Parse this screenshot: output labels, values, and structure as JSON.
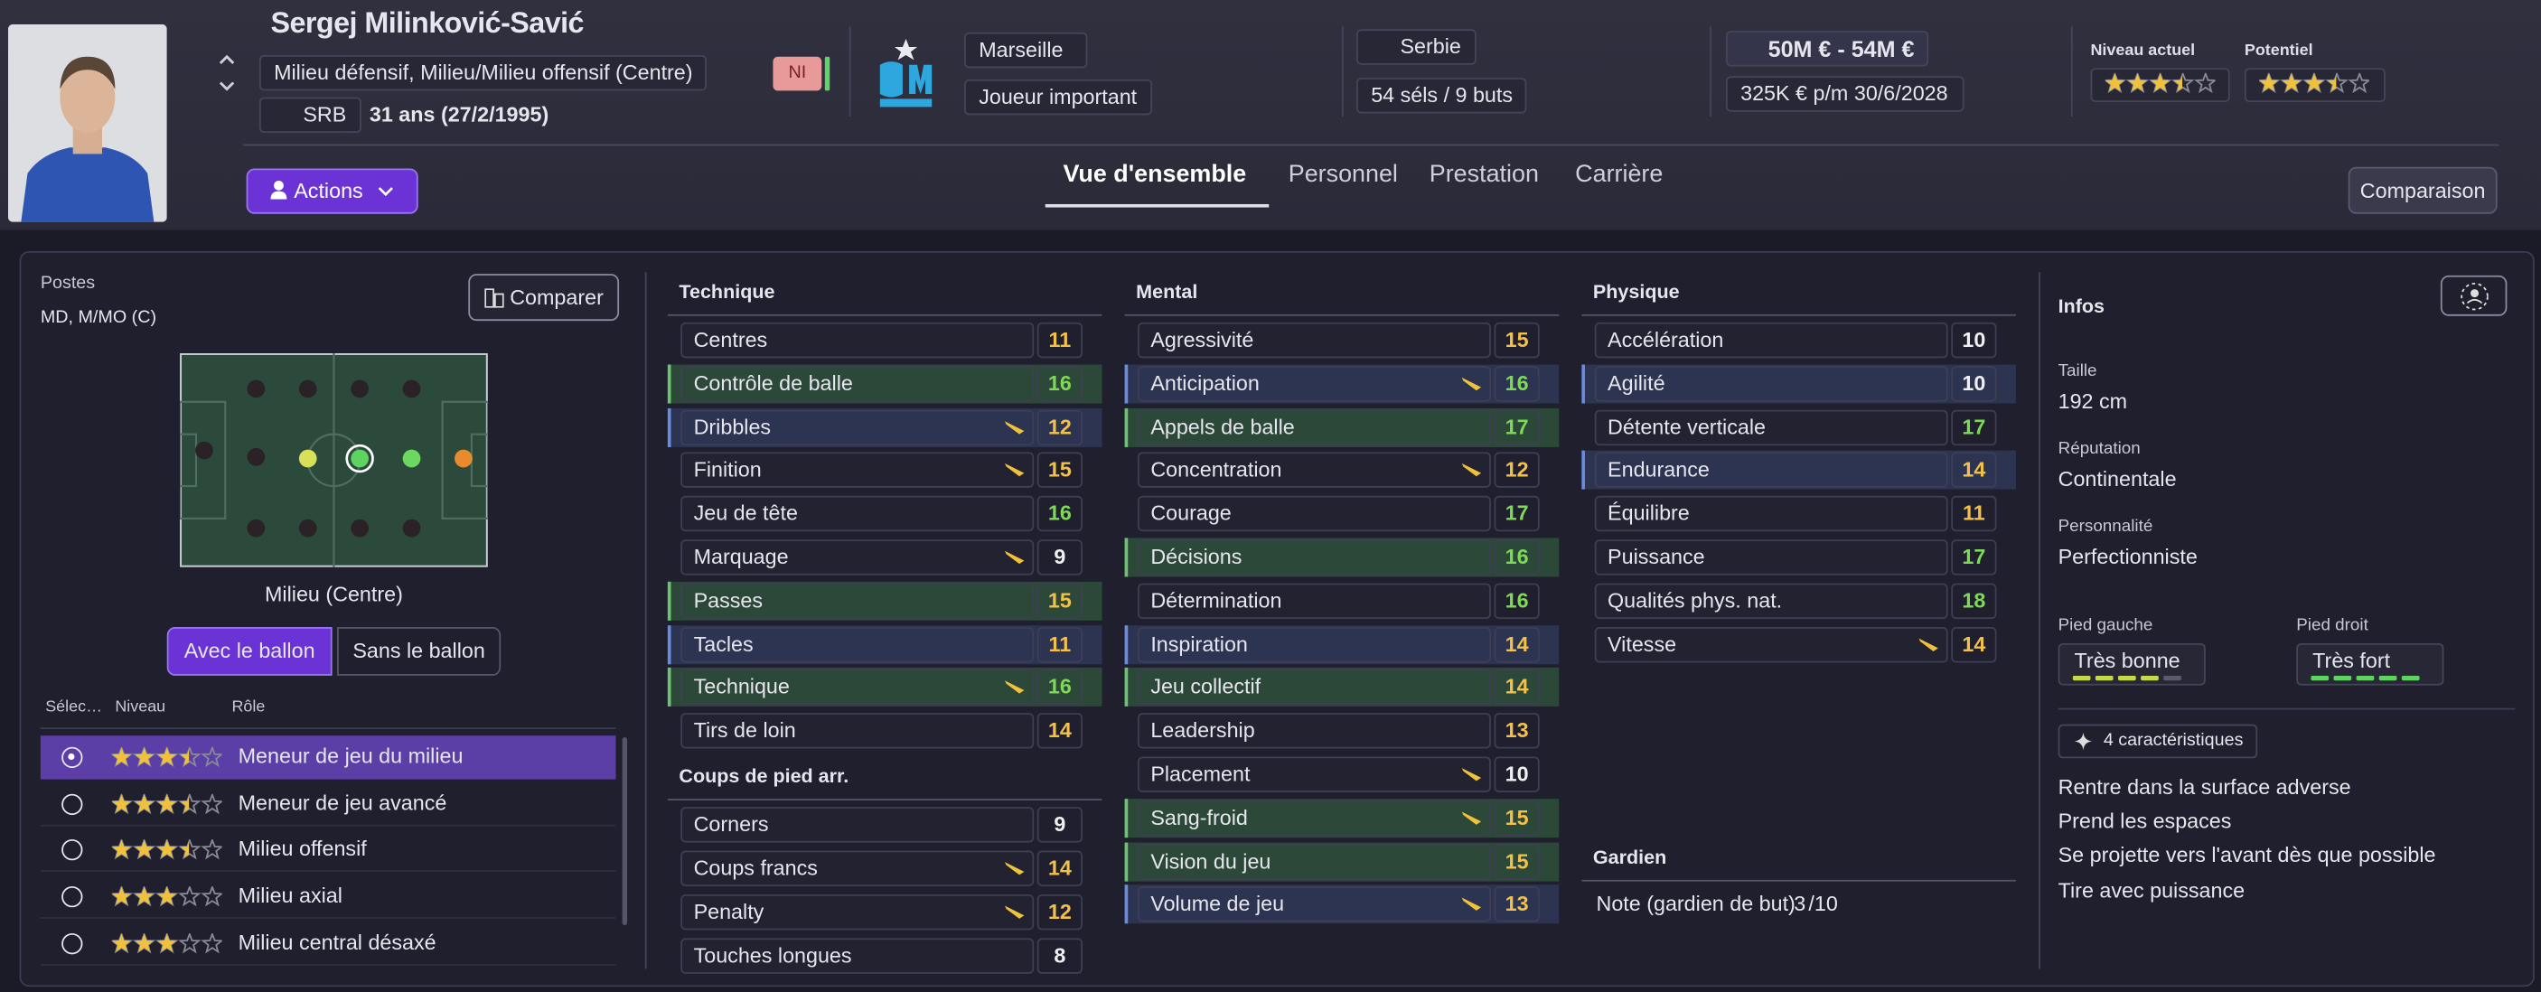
{
  "header": {
    "name": "Sergej Milinković-Savić",
    "positions": "Milieu défensif, Milieu/Milieu offensif (Centre)",
    "nation_code": "SRB",
    "age": "31 ans (27/2/1995)",
    "status_badge": "NI",
    "club": "Marseille",
    "squad_role": "Joueur important",
    "nation": "Serbie",
    "caps": "54 séls / 9 buts",
    "value": "50M € - 54M €",
    "wage": "325K € p/m",
    "contract_end": "30/6/2028",
    "current_ability": {
      "label": "Niveau actuel",
      "stars": 3.5
    },
    "potential": {
      "label": "Potentiel",
      "stars": 3.5
    },
    "actions": "Actions",
    "tabs": [
      "Vue d'ensemble",
      "Personnel",
      "Prestation",
      "Carrière"
    ],
    "compare": "Comparaison"
  },
  "positions_panel": {
    "title": "Postes",
    "positions": "MD, M/MO (C)",
    "compare": "Comparer",
    "selected_position": "Milieu (Centre)",
    "toggles": [
      "Avec le ballon",
      "Sans le ballon"
    ],
    "columns": [
      "Sélec…",
      "Niveau",
      "Rôle"
    ],
    "roles": [
      {
        "stars": 3.5,
        "name": "Meneur de jeu du milieu",
        "selected": true
      },
      {
        "stars": 3.5,
        "name": "Meneur de jeu avancé"
      },
      {
        "stars": 3.5,
        "name": "Milieu offensif"
      },
      {
        "stars": 3,
        "name": "Milieu axial"
      },
      {
        "stars": 3,
        "name": "Milieu central désaxé"
      }
    ]
  },
  "attributes": [
    {
      "title": "Technique",
      "rows": [
        {
          "name": "Centres",
          "value": 11
        },
        {
          "name": "Contrôle de balle",
          "value": 16,
          "highlight": "key"
        },
        {
          "name": "Dribbles",
          "value": 12,
          "highlight": "preferred",
          "arrow": true
        },
        {
          "name": "Finition",
          "value": 15,
          "arrow": true
        },
        {
          "name": "Jeu de tête",
          "value": 16
        },
        {
          "name": "Marquage",
          "value": 9,
          "arrow": true
        },
        {
          "name": "Passes",
          "value": 15,
          "highlight": "key"
        },
        {
          "name": "Tacles",
          "value": 11,
          "highlight": "preferred"
        },
        {
          "name": "Technique",
          "value": 16,
          "highlight": "key",
          "arrow": true
        },
        {
          "name": "Tirs de loin",
          "value": 14
        }
      ]
    },
    {
      "title": "Coups de pied arr.",
      "rows": [
        {
          "name": "Corners",
          "value": 9
        },
        {
          "name": "Coups francs",
          "value": 14,
          "arrow": true
        },
        {
          "name": "Penalty",
          "value": 12,
          "arrow": true
        },
        {
          "name": "Touches longues",
          "value": 8
        }
      ]
    },
    {
      "title": "Mental",
      "rows": [
        {
          "name": "Agressivité",
          "value": 15
        },
        {
          "name": "Anticipation",
          "value": 16,
          "highlight": "preferred",
          "arrow": true
        },
        {
          "name": "Appels de balle",
          "value": 17,
          "highlight": "key"
        },
        {
          "name": "Concentration",
          "value": 12,
          "arrow": true
        },
        {
          "name": "Courage",
          "value": 17
        },
        {
          "name": "Décisions",
          "value": 16,
          "highlight": "key"
        },
        {
          "name": "Détermination",
          "value": 16
        },
        {
          "name": "Inspiration",
          "value": 14,
          "highlight": "preferred"
        },
        {
          "name": "Jeu collectif",
          "value": 14,
          "highlight": "key"
        },
        {
          "name": "Leadership",
          "value": 13
        },
        {
          "name": "Placement",
          "value": 10,
          "arrow": true
        },
        {
          "name": "Sang-froid",
          "value": 15,
          "highlight": "key",
          "arrow": true
        },
        {
          "name": "Vision du jeu",
          "value": 15,
          "highlight": "key"
        },
        {
          "name": "Volume de jeu",
          "value": 13,
          "highlight": "preferred",
          "arrow": true
        }
      ]
    },
    {
      "title": "Physique",
      "rows": [
        {
          "name": "Accélération",
          "value": 10
        },
        {
          "name": "Agilité",
          "value": 10,
          "highlight": "preferred"
        },
        {
          "name": "Détente verticale",
          "value": 17
        },
        {
          "name": "Endurance",
          "value": 14,
          "highlight": "preferred"
        },
        {
          "name": "Équilibre",
          "value": 11
        },
        {
          "name": "Puissance",
          "value": 17
        },
        {
          "name": "Qualités phys. nat.",
          "value": 18
        },
        {
          "name": "Vitesse",
          "value": 14,
          "arrow": true
        }
      ]
    },
    {
      "title": "Gardien",
      "rows": [
        {
          "name": "Note (gardien de but)",
          "value": 3,
          "suffix": "/10"
        }
      ]
    }
  ],
  "infos": {
    "title": "Infos",
    "fields": [
      {
        "label": "Taille",
        "value": "192 cm"
      },
      {
        "label": "Réputation",
        "value": "Continentale"
      },
      {
        "label": "Personnalité",
        "value": "Perfectionniste"
      }
    ],
    "feet": [
      {
        "label": "Pied gauche",
        "value": "Très bonne",
        "level": 4,
        "color": "#c6d94a"
      },
      {
        "label": "Pied droit",
        "value": "Très fort",
        "level": 5,
        "color": "#5fd35f"
      }
    ],
    "traits_count": "4 caractéristiques",
    "traits": [
      "Rentre dans la surface adverse",
      "Prend les espaces",
      "Se projette vers l'avant dès que possible",
      "Tire avec puissance"
    ]
  }
}
